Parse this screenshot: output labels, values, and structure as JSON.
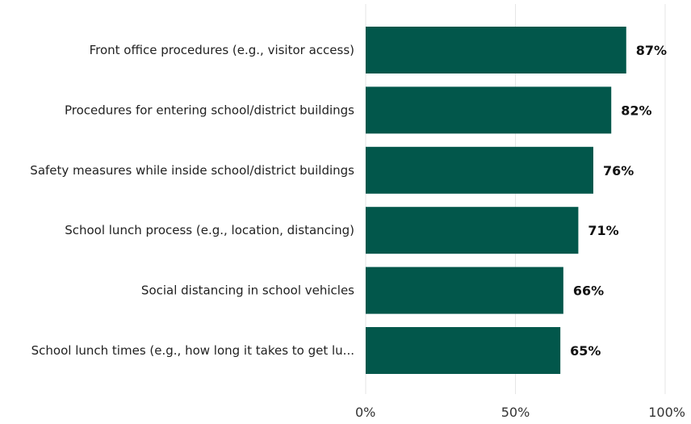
{
  "chart_data": {
    "type": "bar",
    "orientation": "horizontal",
    "categories": [
      "Front office procedures (e.g., visitor access)",
      "Procedures for entering school/district buildings",
      "Safety measures while inside school/district buildings",
      "School lunch process (e.g., location, distancing)",
      "Social distancing in school vehicles",
      "School lunch times (e.g., how long it takes to get lu..."
    ],
    "values": [
      87,
      82,
      76,
      71,
      66,
      65
    ],
    "value_labels": [
      "87%",
      "82%",
      "76%",
      "71%",
      "66%",
      "65%"
    ],
    "xlim": [
      0,
      100
    ],
    "x_ticks": [
      0,
      50,
      100
    ],
    "x_tick_labels": [
      "0%",
      "50%",
      "100%"
    ],
    "grid": "vertical",
    "bar_color": "#02574b"
  }
}
